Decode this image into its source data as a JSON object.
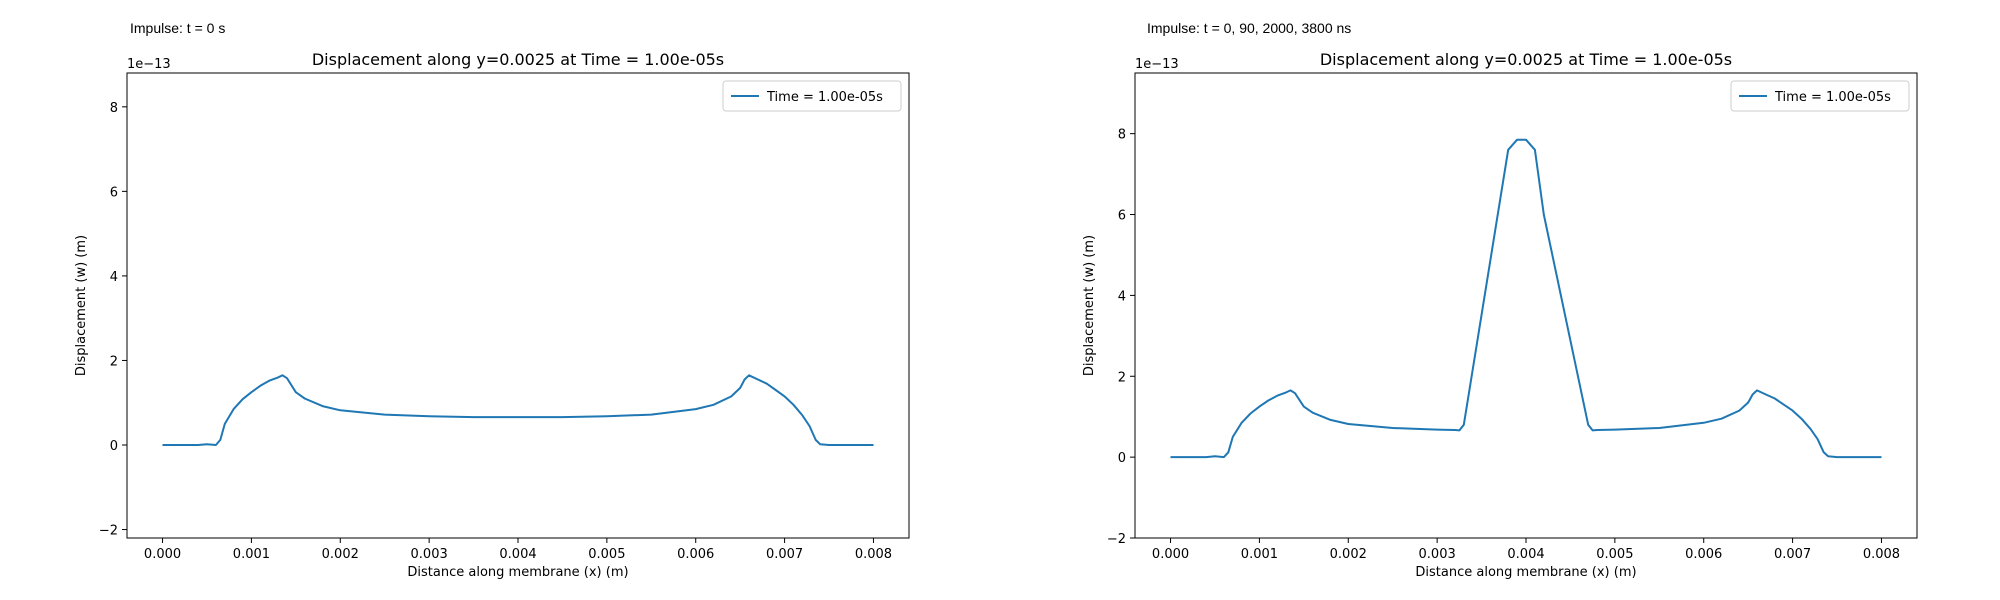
{
  "panels": [
    {
      "caption": "Impulse: t = 0 s"
    },
    {
      "caption": "Impulse: t = 0, 90, 2000, 3800 ns"
    }
  ],
  "chart_data": [
    {
      "type": "line",
      "title": "Displacement along y=0.0025 at Time = 1.00e-05s",
      "xlabel": "Distance along membrane (x) (m)",
      "ylabel": "Displacement (w) (m)",
      "y_multiplier": "1e−13",
      "xlim": [
        -0.0004,
        0.0084
      ],
      "ylim": [
        -2.2,
        8.8
      ],
      "xticks": [
        0.0,
        0.001,
        0.002,
        0.003,
        0.004,
        0.005,
        0.006,
        0.007,
        0.008
      ],
      "xtick_labels": [
        "0.000",
        "0.001",
        "0.002",
        "0.003",
        "0.004",
        "0.005",
        "0.006",
        "0.007",
        "0.008"
      ],
      "yticks": [
        -2,
        0,
        2,
        4,
        6,
        8
      ],
      "ytick_labels": [
        "−2",
        "0",
        "2",
        "4",
        "6",
        "8"
      ],
      "grid": false,
      "legend": "upper right",
      "series": [
        {
          "name": "Time = 1.00e-05s",
          "color": "#1f77b4",
          "x": [
            0.0,
            0.0002,
            0.0004,
            0.0005,
            0.0006,
            0.00065,
            0.0007,
            0.0008,
            0.0009,
            0.001,
            0.0011,
            0.0012,
            0.0013,
            0.00135,
            0.0014,
            0.0015,
            0.0016,
            0.0018,
            0.002,
            0.0025,
            0.003,
            0.0035,
            0.004,
            0.0045,
            0.005,
            0.0055,
            0.006,
            0.0062,
            0.0064,
            0.0065,
            0.00655,
            0.0066,
            0.0067,
            0.0068,
            0.0069,
            0.007,
            0.0071,
            0.0072,
            0.00728,
            0.00735,
            0.0074,
            0.0075,
            0.0076,
            0.008
          ],
          "y": [
            0.0,
            0.0,
            0.0,
            0.02,
            0.0,
            0.12,
            0.5,
            0.85,
            1.08,
            1.25,
            1.4,
            1.52,
            1.6,
            1.65,
            1.58,
            1.25,
            1.1,
            0.92,
            0.82,
            0.72,
            0.68,
            0.66,
            0.66,
            0.66,
            0.68,
            0.72,
            0.85,
            0.95,
            1.15,
            1.35,
            1.55,
            1.65,
            1.55,
            1.45,
            1.3,
            1.15,
            0.95,
            0.7,
            0.45,
            0.12,
            0.02,
            0.0,
            0.0,
            0.0
          ]
        }
      ]
    },
    {
      "type": "line",
      "title": "Displacement along y=0.0025 at Time = 1.00e-05s",
      "xlabel": "Distance along membrane (x) (m)",
      "ylabel": "Displacement (w) (m)",
      "y_multiplier": "1e−13",
      "xlim": [
        -0.0004,
        0.0084
      ],
      "ylim": [
        -2.0,
        9.5
      ],
      "xticks": [
        0.0,
        0.001,
        0.002,
        0.003,
        0.004,
        0.005,
        0.006,
        0.007,
        0.008
      ],
      "xtick_labels": [
        "0.000",
        "0.001",
        "0.002",
        "0.003",
        "0.004",
        "0.005",
        "0.006",
        "0.007",
        "0.008"
      ],
      "yticks": [
        -2,
        0,
        2,
        4,
        6,
        8
      ],
      "ytick_labels": [
        "−2",
        "0",
        "2",
        "4",
        "6",
        "8"
      ],
      "grid": false,
      "legend": "upper right",
      "series": [
        {
          "name": "Time = 1.00e-05s",
          "color": "#1f77b4",
          "x": [
            0.0,
            0.0002,
            0.0004,
            0.0005,
            0.0006,
            0.00065,
            0.0007,
            0.0008,
            0.0009,
            0.001,
            0.0011,
            0.0012,
            0.0013,
            0.00135,
            0.0014,
            0.0015,
            0.0016,
            0.0018,
            0.002,
            0.0025,
            0.003,
            0.0032,
            0.00325,
            0.0033,
            0.0038,
            0.0039,
            0.004,
            0.0041,
            0.0042,
            0.0047,
            0.00475,
            0.0048,
            0.005,
            0.0055,
            0.006,
            0.0062,
            0.0064,
            0.0065,
            0.00655,
            0.0066,
            0.0067,
            0.0068,
            0.0069,
            0.007,
            0.0071,
            0.0072,
            0.00728,
            0.00735,
            0.0074,
            0.0075,
            0.0076,
            0.008
          ],
          "y": [
            0.0,
            0.0,
            0.0,
            0.02,
            0.0,
            0.12,
            0.5,
            0.85,
            1.08,
            1.25,
            1.4,
            1.52,
            1.6,
            1.65,
            1.58,
            1.25,
            1.1,
            0.92,
            0.82,
            0.72,
            0.68,
            0.67,
            0.66,
            0.8,
            7.6,
            7.85,
            7.85,
            7.6,
            6.0,
            0.8,
            0.66,
            0.67,
            0.68,
            0.72,
            0.85,
            0.95,
            1.15,
            1.35,
            1.55,
            1.65,
            1.55,
            1.45,
            1.3,
            1.15,
            0.95,
            0.7,
            0.45,
            0.12,
            0.02,
            0.0,
            0.0,
            0.0
          ]
        }
      ]
    }
  ]
}
